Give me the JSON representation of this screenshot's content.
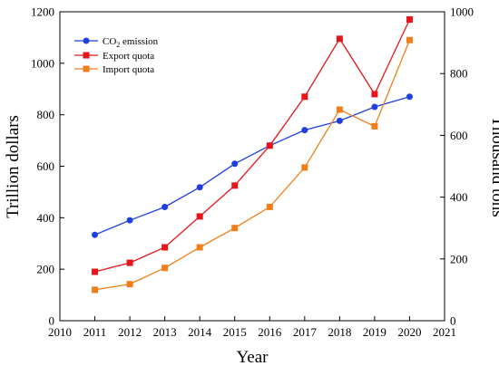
{
  "chart_data": {
    "type": "line",
    "xlabel": "Year",
    "ylabel_left": "Trillion dollars",
    "ylabel_right": "Thousand tons",
    "xlim": [
      2010,
      2021
    ],
    "xticks": [
      "2010",
      "2011",
      "2012",
      "2013",
      "2014",
      "2015",
      "2016",
      "2017",
      "2018",
      "2019",
      "2020",
      "2021"
    ],
    "ylim_left": [
      0,
      1200
    ],
    "yticks_left": [
      "0",
      "200",
      "400",
      "600",
      "800",
      "1000",
      "1200"
    ],
    "ylim_right": [
      0,
      1000
    ],
    "yticks_right": [
      "0",
      "200",
      "400",
      "600",
      "800",
      "1000"
    ],
    "x": [
      2011,
      2012,
      2013,
      2014,
      2015,
      2016,
      2017,
      2018,
      2019,
      2020
    ],
    "legend_position": "top-left",
    "series": [
      {
        "name": "CO₂ emission",
        "name_main": "CO",
        "name_sub": "2",
        "name_rest": " emission",
        "axis": "right",
        "color": "#1f3fe0",
        "marker": "circle",
        "values": [
          278,
          325,
          368,
          432,
          508,
          567,
          617,
          647,
          692,
          725
        ]
      },
      {
        "name": "Export quota",
        "axis": "left",
        "color": "#e8141a",
        "marker": "square",
        "values": [
          190,
          225,
          285,
          405,
          525,
          680,
          870,
          1095,
          880,
          1170
        ]
      },
      {
        "name": "Import quota",
        "axis": "left",
        "color": "#f07f1a",
        "marker": "square",
        "values": [
          120,
          142,
          205,
          285,
          360,
          442,
          595,
          820,
          755,
          1090
        ]
      }
    ]
  }
}
